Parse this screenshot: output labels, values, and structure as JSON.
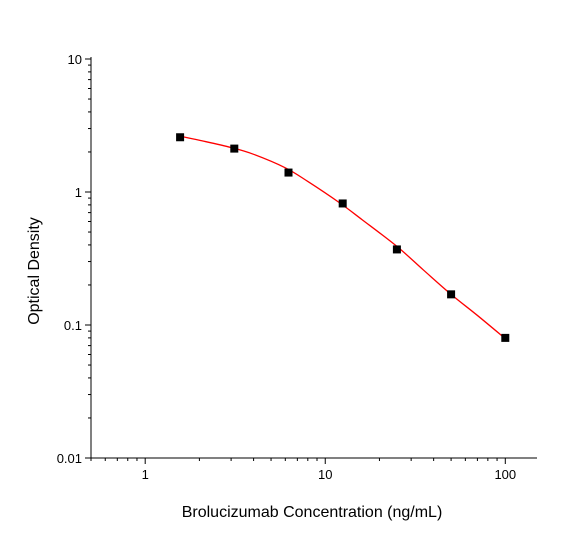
{
  "chart_data": {
    "type": "scatter",
    "title": "",
    "xlabel": "Brolucizumab Concentration (ng/mL)",
    "ylabel": "Optical Density",
    "xscale": "log",
    "yscale": "log",
    "xlim": [
      0.5,
      150
    ],
    "ylim": [
      0.01,
      10
    ],
    "x_tick_labels": [
      "1",
      "10",
      "100"
    ],
    "x_tick_values": [
      1,
      10,
      100
    ],
    "y_tick_labels": [
      "0.01",
      "0.1",
      "1",
      "10"
    ],
    "y_tick_values": [
      0.01,
      0.1,
      1,
      10
    ],
    "grid": false,
    "legend": "none",
    "series": [
      {
        "x": [
          1.5625,
          3.125,
          6.25,
          12.5,
          25,
          50,
          100
        ],
        "y": [
          2.58,
          2.12,
          1.4,
          0.82,
          0.37,
          0.17,
          0.08
        ],
        "marker": "square",
        "marker_color": "#000000"
      }
    ],
    "fit_curve": {
      "model": "four-parameter logistic",
      "color": "#ff0000",
      "x": [
        1.5625,
        2,
        3,
        4,
        6,
        8,
        12,
        16,
        25,
        35,
        50,
        70,
        100
      ],
      "y": [
        2.63,
        2.45,
        2.16,
        1.92,
        1.52,
        1.2,
        0.83,
        0.62,
        0.39,
        0.26,
        0.17,
        0.118,
        0.079
      ]
    }
  }
}
